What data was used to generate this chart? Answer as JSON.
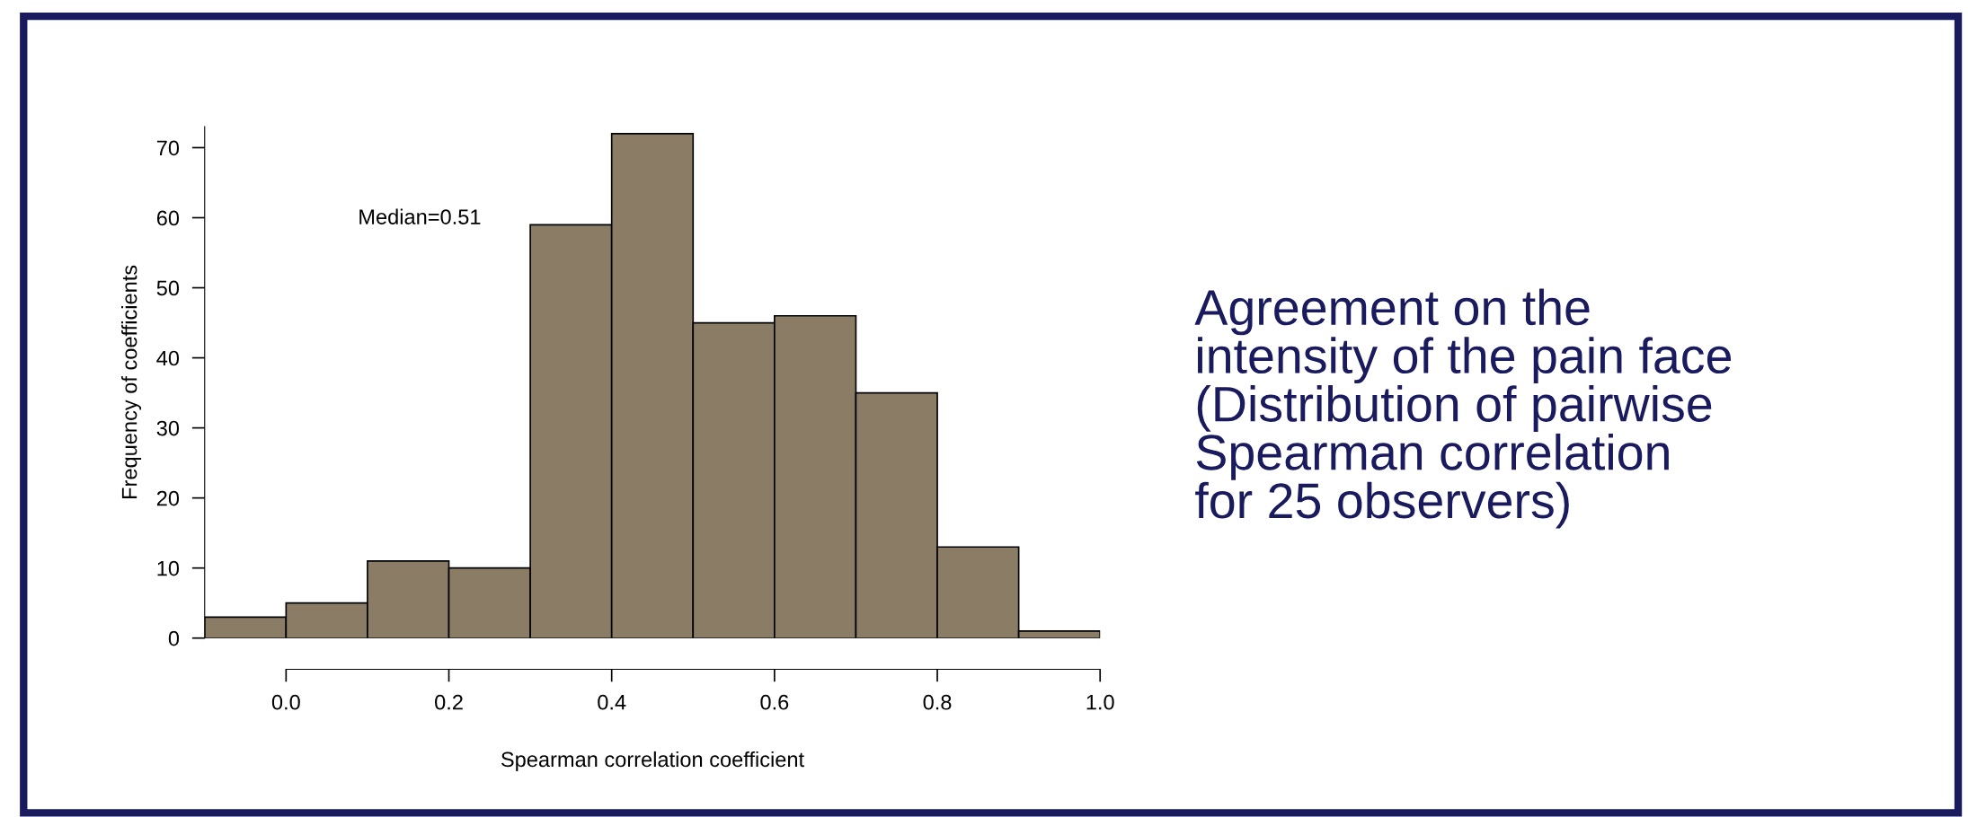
{
  "chart_data": {
    "type": "histogram",
    "xlabel": "Spearman correlation coefficient",
    "ylabel": "Frequency of coefficients",
    "bins": [
      -0.1,
      0.0,
      0.1,
      0.2,
      0.3,
      0.4,
      0.5,
      0.6,
      0.7,
      0.8,
      0.9,
      1.0
    ],
    "values": [
      3,
      5,
      11,
      10,
      59,
      72,
      45,
      46,
      35,
      13,
      1
    ],
    "color": "#8b7d65",
    "xlim": [
      -0.1,
      1.0
    ],
    "xticks": [
      {
        "value": 0,
        "label": "0.0"
      },
      0.2,
      0.4,
      0.6,
      0.8,
      {
        "value": 1,
        "label": "1.0"
      }
    ],
    "ylim": [
      0,
      73
    ],
    "yticks": [
      0,
      10,
      20,
      30,
      40,
      50,
      60,
      70
    ],
    "grid": false,
    "legend": false,
    "annotations": [
      "Median=0.51",
      "Agreement on the\nintensity of the pain face\n(Distribution of pairwise\nSpearman correlation\nfor 25 observers)"
    ]
  }
}
